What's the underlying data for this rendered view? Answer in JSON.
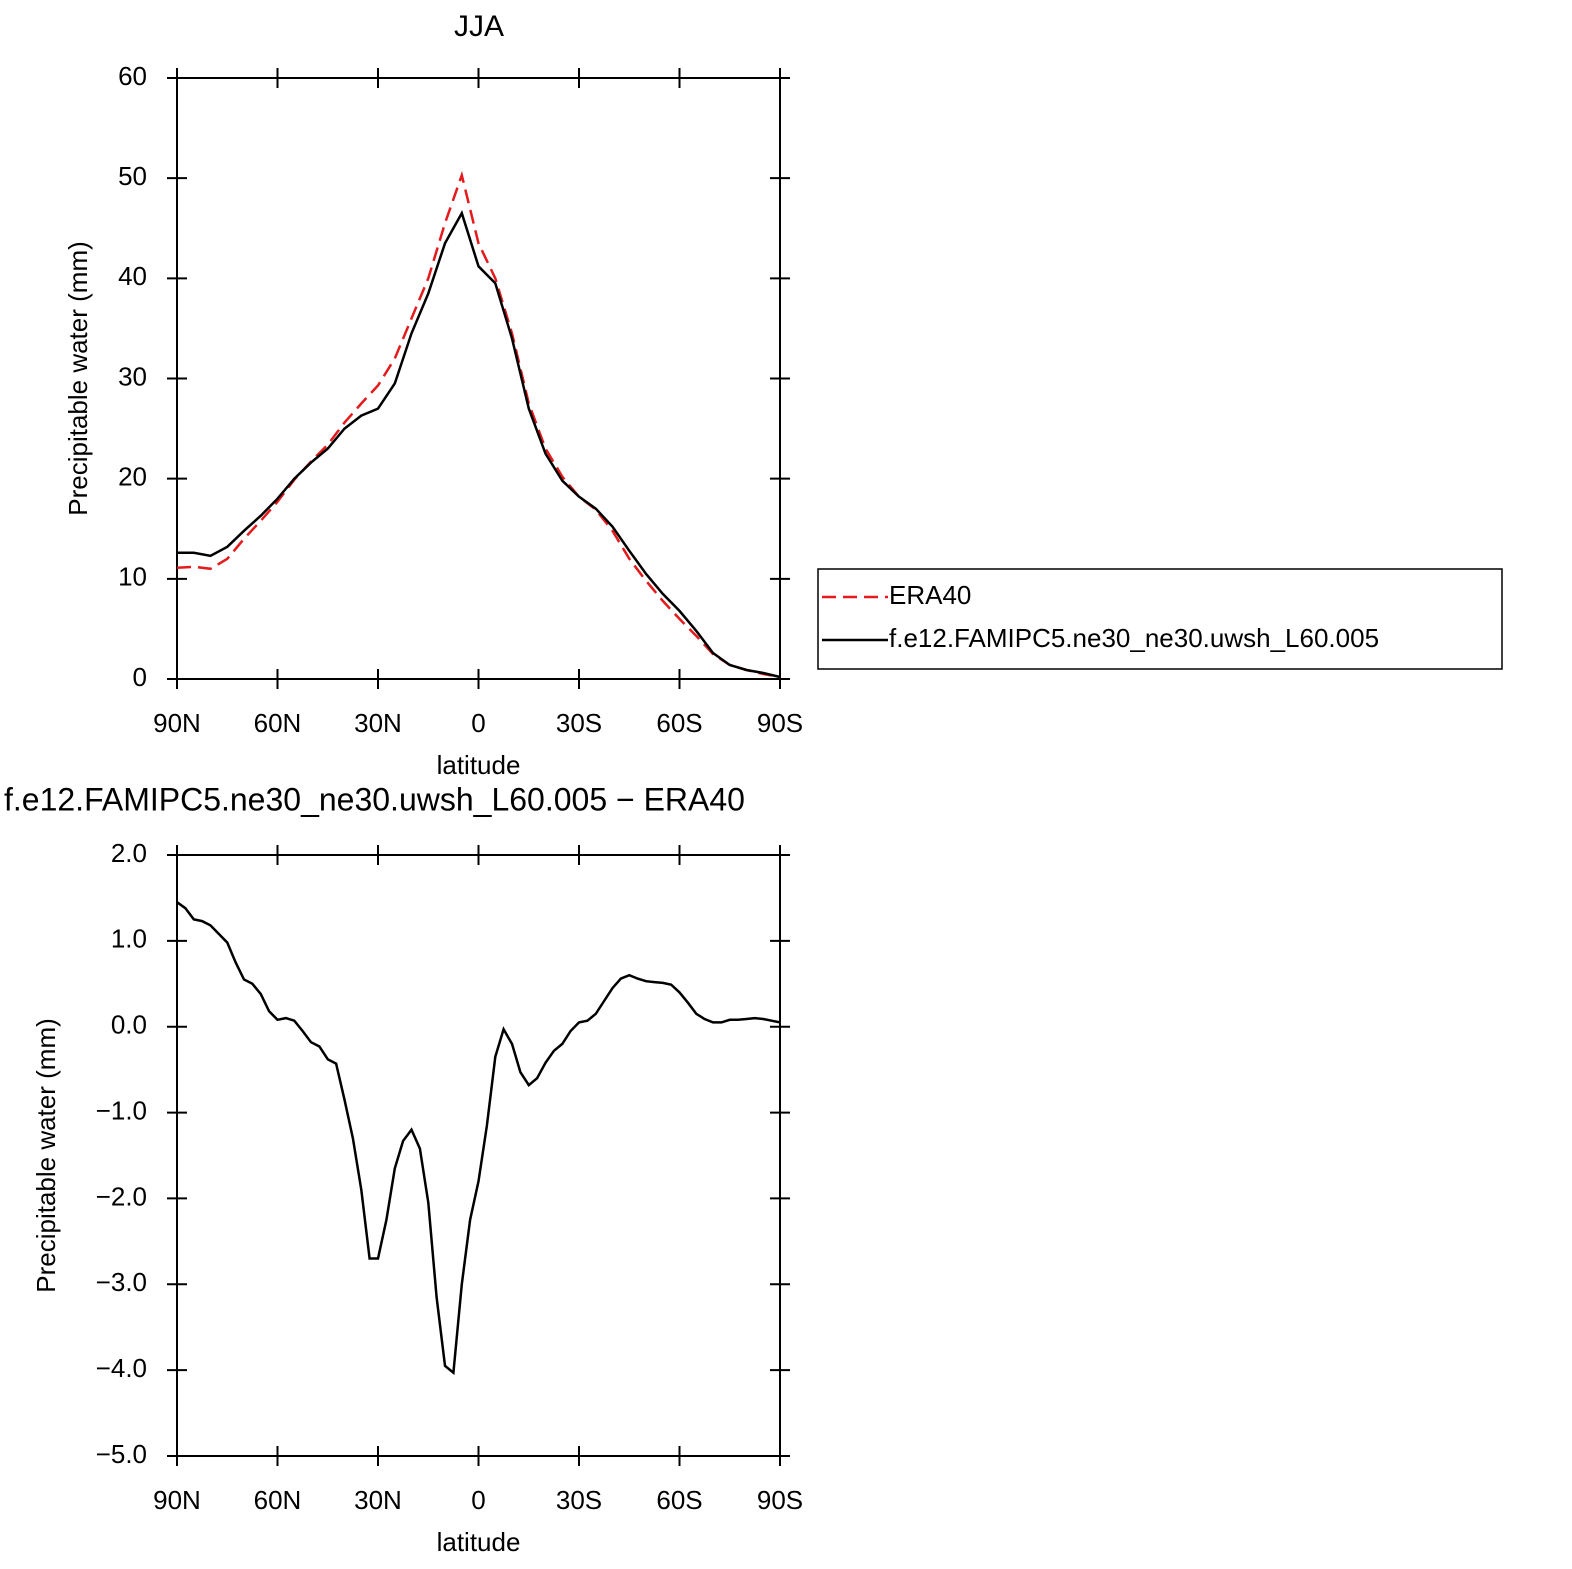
{
  "chart_data": [
    {
      "type": "line",
      "title": "JJA",
      "xlabel": "latitude",
      "ylabel": "Precipitable water (mm)",
      "x": [
        90,
        85,
        80,
        75,
        70,
        65,
        60,
        55,
        50,
        45,
        40,
        35,
        30,
        25,
        20,
        15,
        10,
        5,
        0,
        -5,
        -10,
        -15,
        -20,
        -25,
        -30,
        -35,
        -40,
        -45,
        -50,
        -55,
        -60,
        -65,
        -70,
        -75,
        -80,
        -85,
        -90
      ],
      "series": [
        {
          "name": "ERA40",
          "color": "#e41a1c",
          "dash": true,
          "values": [
            11.1,
            11.2,
            11.0,
            12.0,
            14.0,
            15.8,
            17.7,
            19.9,
            21.7,
            23.4,
            25.6,
            27.5,
            29.3,
            32.0,
            36.0,
            40.0,
            45.5,
            50.3,
            43.5,
            40.0,
            34.5,
            27.5,
            23.0,
            20.2,
            18.2,
            16.9,
            14.8,
            12.0,
            9.8,
            7.8,
            6.0,
            4.3,
            2.5,
            1.4,
            0.9,
            0.5,
            0.2
          ]
        },
        {
          "name": "f.e12.FAMIPC5.ne30_ne30.uwsh_L60.005",
          "color": "#000000",
          "dash": false,
          "values": [
            12.6,
            12.6,
            12.3,
            13.2,
            14.8,
            16.3,
            18.0,
            20.0,
            21.6,
            23.0,
            25.0,
            26.3,
            27.0,
            29.5,
            34.5,
            38.5,
            43.5,
            46.5,
            41.2,
            39.5,
            34.0,
            27.0,
            22.5,
            19.8,
            18.2,
            17.0,
            15.2,
            12.8,
            10.5,
            8.5,
            6.8,
            4.8,
            2.6,
            1.4,
            0.9,
            0.6,
            0.2
          ]
        }
      ],
      "xlim": [
        90,
        -90
      ],
      "xticks": [
        {
          "value": 90,
          "label": "90N"
        },
        {
          "value": 60,
          "label": "60N"
        },
        {
          "value": 30,
          "label": "30N"
        },
        0,
        {
          "value": -30,
          "label": "30S"
        },
        {
          "value": -60,
          "label": "60S"
        },
        {
          "value": -90,
          "label": "90S"
        }
      ],
      "ylim": [
        0,
        60
      ],
      "yticks": [
        0,
        10,
        20,
        30,
        40,
        50,
        60
      ],
      "legend": "outside right"
    },
    {
      "type": "line",
      "title": "f.e12.FAMIPC5.ne30_ne30.uwsh_L60.005 − ERA40",
      "xlabel": "latitude",
      "ylabel": "Precipitable water (mm)",
      "x": [
        90,
        87.5,
        85,
        82.5,
        80,
        77.5,
        75,
        72.5,
        70,
        67.5,
        65,
        62.5,
        60,
        57.5,
        55,
        52.5,
        50,
        47.5,
        45,
        42.5,
        40,
        37.5,
        35,
        32.5,
        30,
        27.5,
        25,
        22.5,
        20,
        17.5,
        15,
        12.5,
        10,
        7.5,
        5,
        2.5,
        0,
        -2.5,
        -5,
        -7.5,
        -10,
        -12.5,
        -15,
        -17.5,
        -20,
        -22.5,
        -25,
        -27.5,
        -30,
        -32.5,
        -35,
        -37.5,
        -40,
        -42.5,
        -45,
        -47.5,
        -50,
        -52.5,
        -55,
        -57.5,
        -60,
        -62.5,
        -65,
        -67.5,
        -70,
        -72.5,
        -75,
        -77.5,
        -80,
        -82.5,
        -85,
        -87.5,
        -90
      ],
      "color": "#000000",
      "values": [
        1.45,
        1.38,
        1.25,
        1.23,
        1.18,
        1.08,
        0.98,
        0.75,
        0.55,
        0.5,
        0.38,
        0.18,
        0.08,
        0.1,
        0.07,
        -0.05,
        -0.18,
        -0.23,
        -0.38,
        -0.43,
        -0.85,
        -1.3,
        -1.9,
        -2.7,
        -2.7,
        -2.25,
        -1.65,
        -1.33,
        -1.2,
        -1.42,
        -2.05,
        -3.15,
        -3.95,
        -4.03,
        -3.0,
        -2.25,
        -1.8,
        -1.15,
        -0.35,
        -0.03,
        -0.2,
        -0.53,
        -0.68,
        -0.6,
        -0.42,
        -0.28,
        -0.2,
        -0.05,
        0.05,
        0.07,
        0.15,
        0.3,
        0.45,
        0.56,
        0.6,
        0.56,
        0.53,
        0.52,
        0.51,
        0.49,
        0.4,
        0.28,
        0.15,
        0.09,
        0.05,
        0.05,
        0.08,
        0.08,
        0.09,
        0.1,
        0.09,
        0.07,
        0.05
      ],
      "xlim": [
        90,
        -90
      ],
      "xticks": [
        {
          "value": 90,
          "label": "90N"
        },
        {
          "value": 60,
          "label": "60N"
        },
        {
          "value": 30,
          "label": "30N"
        },
        0,
        {
          "value": -30,
          "label": "30S"
        },
        {
          "value": -60,
          "label": "60S"
        },
        {
          "value": -90,
          "label": "90S"
        }
      ],
      "ylim": [
        -5,
        2
      ],
      "yticks": [
        {
          "value": 2,
          "label": "2.0"
        },
        {
          "value": 1,
          "label": "1.0"
        },
        {
          "value": 0,
          "label": "0.0"
        },
        {
          "value": -1,
          "label": "−1.0"
        },
        {
          "value": -2,
          "label": "−2.0"
        },
        {
          "value": -3,
          "label": "−3.0"
        },
        {
          "value": -4,
          "label": "−4.0"
        },
        {
          "value": -5,
          "label": "−5.0"
        }
      ]
    }
  ]
}
